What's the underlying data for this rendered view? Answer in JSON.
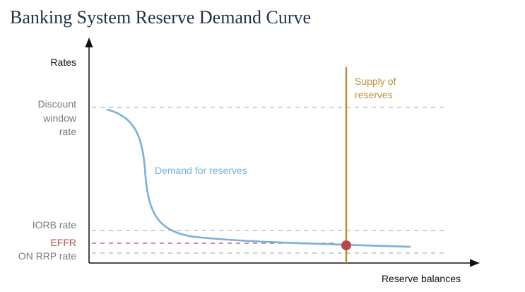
{
  "title": "Banking System Reserve Demand Curve",
  "axes": {
    "y_label": "Rates",
    "x_label": "Reserve balances"
  },
  "levels": {
    "discount_window": [
      "Discount",
      "window",
      "rate"
    ],
    "iorb": "IORB rate",
    "effr": "EFFR",
    "on_rrp": "ON RRP rate"
  },
  "curves": {
    "demand_label": "Demand for reserves",
    "supply_label": [
      "Supply of",
      "reserves"
    ]
  },
  "colors": {
    "title": "#1f3145",
    "axis_text": "#111111",
    "level_text": "#7a7a7a",
    "dash": "#b4b4b4",
    "effr": "#b5504f",
    "demand": "#79b1d9",
    "supply": "#b8913a",
    "equilibrium_dot": "#b34a4c"
  }
}
